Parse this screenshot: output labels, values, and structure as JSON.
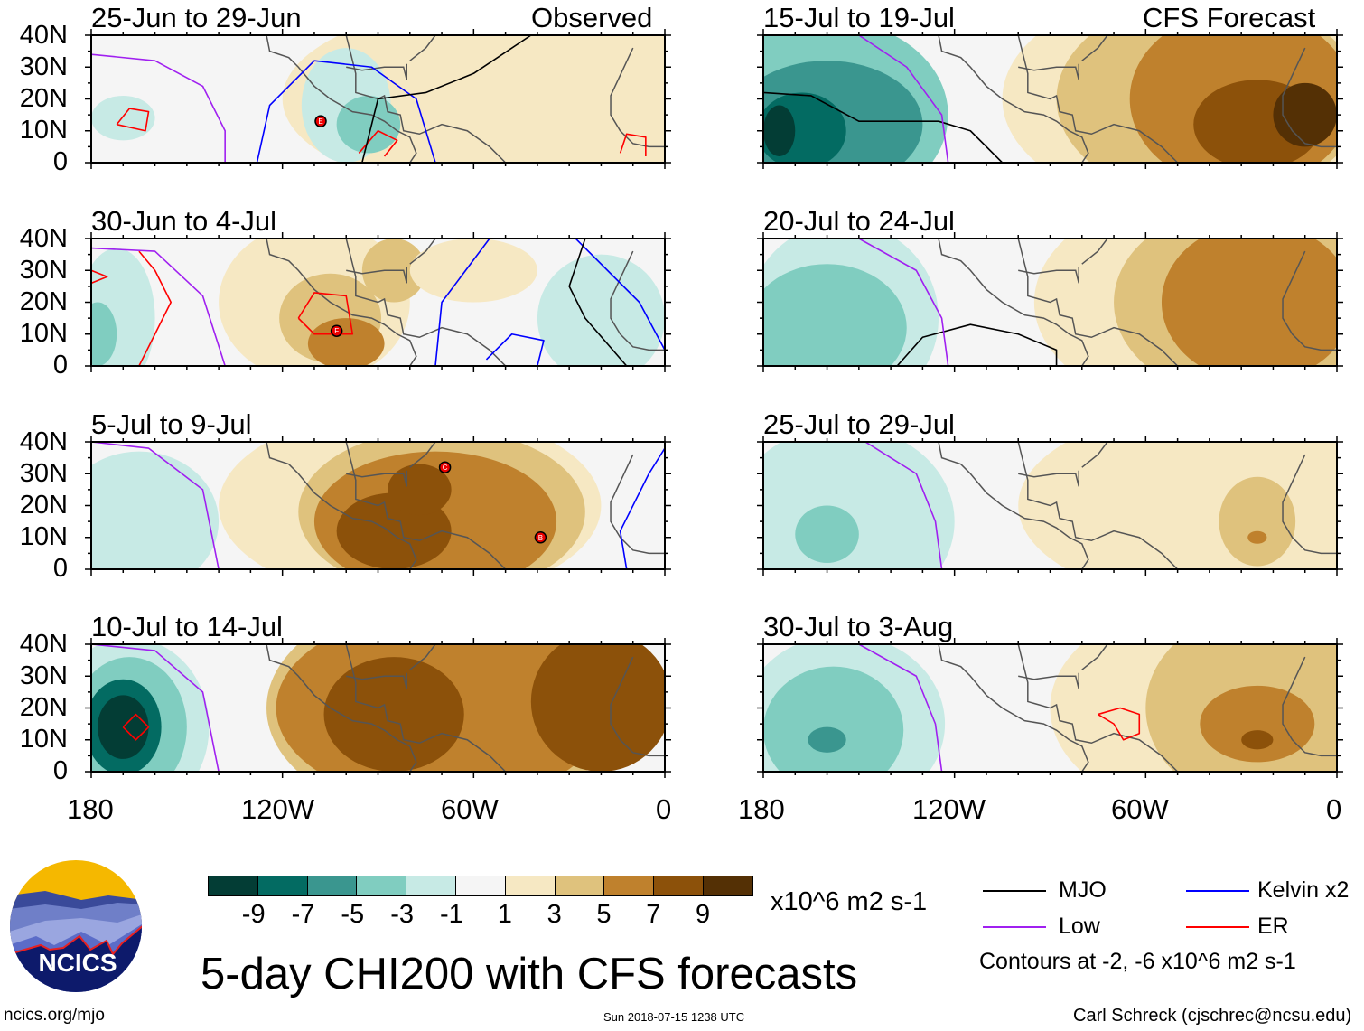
{
  "colors": [
    "#033d35",
    "#036b62",
    "#3a968f",
    "#80cdc0",
    "#c7eae5",
    "#f5f5f5",
    "#f6e8c3",
    "#dfc27d",
    "#bf812d",
    "#8c510a",
    "#543005"
  ],
  "header": {
    "observed": "Observed",
    "forecast": "CFS Forecast"
  },
  "lat_ticks": [
    "40N",
    "30N",
    "20N",
    "10N",
    "0"
  ],
  "lon_ticks": [
    "180",
    "120W",
    "60W",
    "0"
  ],
  "panels": [
    {
      "title": "25-Jun to 29-Jun",
      "bg": 5,
      "blobs": [
        [
          -50,
          20,
          70,
          30,
          6
        ],
        [
          -20,
          25,
          40,
          30,
          6
        ],
        [
          -100,
          18,
          14,
          18,
          4
        ],
        [
          -93,
          12,
          10,
          9,
          3
        ],
        [
          -170,
          14,
          10,
          7,
          4
        ]
      ],
      "contours": [
        {
          "type": "ER",
          "pts": [
            [
              -172,
              12
            ],
            [
              -168,
              17
            ],
            [
              -162,
              16
            ],
            [
              -163,
              10
            ],
            [
              -172,
              12
            ]
          ]
        },
        {
          "type": "ER",
          "pts": [
            [
              -96,
              3
            ],
            [
              -90,
              10
            ],
            [
              -84,
              7
            ],
            [
              -88,
              2
            ]
          ]
        },
        {
          "type": "ER",
          "pts": [
            [
              -14,
              3
            ],
            [
              -12,
              9
            ],
            [
              -6,
              8
            ],
            [
              -6,
              2
            ]
          ]
        },
        {
          "type": "Low",
          "pts": [
            [
              -180,
              34
            ],
            [
              -160,
              32
            ],
            [
              -145,
              24
            ],
            [
              -138,
              10
            ],
            [
              -138,
              0
            ]
          ]
        },
        {
          "type": "Kelvin",
          "pts": [
            [
              -128,
              0
            ],
            [
              -124,
              18
            ],
            [
              -110,
              32
            ],
            [
              -92,
              30
            ],
            [
              -78,
              20
            ],
            [
              -72,
              0
            ]
          ]
        },
        {
          "type": "MJO",
          "pts": [
            [
              -95,
              0
            ],
            [
              -90,
              20
            ],
            [
              -75,
              22
            ],
            [
              -60,
              28
            ],
            [
              -42,
              40
            ]
          ]
        }
      ],
      "storms": [
        {
          "id": "E",
          "lon": -108,
          "lat": 13
        }
      ]
    },
    {
      "title": "30-Jun to 4-Jul",
      "bg": 5,
      "blobs": [
        [
          -172,
          15,
          12,
          22,
          4
        ],
        [
          -178,
          10,
          6,
          10,
          3
        ],
        [
          -110,
          20,
          30,
          25,
          6
        ],
        [
          -105,
          15,
          16,
          14,
          7
        ],
        [
          -100,
          7,
          12,
          8,
          8
        ],
        [
          -85,
          30,
          10,
          10,
          7
        ],
        [
          -20,
          15,
          20,
          20,
          4
        ],
        [
          -60,
          30,
          20,
          10,
          6
        ]
      ],
      "contours": [
        {
          "type": "ER",
          "pts": [
            [
              -180,
              30
            ],
            [
              -175,
              28
            ],
            [
              -180,
              26
            ]
          ]
        },
        {
          "type": "ER",
          "pts": [
            [
              -165,
              36
            ],
            [
              -160,
              30
            ],
            [
              -155,
              20
            ],
            [
              -165,
              0
            ]
          ]
        },
        {
          "type": "ER",
          "pts": [
            [
              -115,
              15
            ],
            [
              -110,
              23
            ],
            [
              -100,
              22
            ],
            [
              -98,
              10
            ],
            [
              -110,
              10
            ],
            [
              -115,
              15
            ]
          ]
        },
        {
          "type": "Low",
          "pts": [
            [
              -180,
              37
            ],
            [
              -160,
              36
            ],
            [
              -145,
              22
            ],
            [
              -138,
              0
            ]
          ]
        },
        {
          "type": "Kelvin",
          "pts": [
            [
              -72,
              0
            ],
            [
              -70,
              20
            ],
            [
              -55,
              40
            ]
          ]
        },
        {
          "type": "Kelvin",
          "pts": [
            [
              -56,
              2
            ],
            [
              -48,
              10
            ],
            [
              -38,
              8
            ],
            [
              -40,
              0
            ]
          ]
        },
        {
          "type": "Kelvin",
          "pts": [
            [
              -28,
              40
            ],
            [
              -18,
              30
            ],
            [
              -8,
              20
            ],
            [
              0,
              5
            ]
          ]
        },
        {
          "type": "MJO",
          "pts": [
            [
              -25,
              40
            ],
            [
              -30,
              25
            ],
            [
              -25,
              15
            ],
            [
              -12,
              0
            ]
          ]
        }
      ],
      "storms": [
        {
          "id": "F",
          "lon": -103,
          "lat": 11
        }
      ]
    },
    {
      "title": "5-Jul to 9-Jul",
      "bg": 5,
      "blobs": [
        [
          -172,
          10,
          14,
          14,
          3
        ],
        [
          -165,
          15,
          25,
          22,
          4
        ],
        [
          -80,
          20,
          60,
          30,
          6
        ],
        [
          -70,
          18,
          45,
          26,
          7
        ],
        [
          -72,
          15,
          38,
          22,
          8
        ],
        [
          -85,
          12,
          18,
          12,
          9
        ],
        [
          -77,
          25,
          10,
          8,
          9
        ]
      ],
      "contours": [
        {
          "type": "Low",
          "pts": [
            [
              -180,
              40
            ],
            [
              -162,
              38
            ],
            [
              -145,
              25
            ],
            [
              -140,
              0
            ]
          ]
        },
        {
          "type": "Kelvin",
          "pts": [
            [
              -12,
              0
            ],
            [
              -14,
              12
            ],
            [
              -5,
              30
            ],
            [
              0,
              38
            ]
          ]
        }
      ],
      "storms": [
        {
          "id": "C",
          "lon": -69,
          "lat": 32
        },
        {
          "id": "B",
          "lon": -39,
          "lat": 10
        }
      ]
    },
    {
      "title": "10-Jul to 14-Jul",
      "bg": 5,
      "blobs": [
        [
          -168,
          14,
          25,
          28,
          4
        ],
        [
          -168,
          14,
          18,
          22,
          3
        ],
        [
          -170,
          14,
          12,
          15,
          1
        ],
        [
          -170,
          14,
          8,
          10,
          0
        ],
        [
          -70,
          20,
          55,
          35,
          7
        ],
        [
          -70,
          20,
          52,
          30,
          8
        ],
        [
          -85,
          18,
          22,
          18,
          9
        ],
        [
          -20,
          22,
          22,
          22,
          9
        ]
      ],
      "contours": [
        {
          "type": "ER",
          "pts": [
            [
              -170,
              14
            ],
            [
              -166,
              18
            ],
            [
              -162,
              14
            ],
            [
              -166,
              10
            ],
            [
              -170,
              14
            ]
          ]
        },
        {
          "type": "Low",
          "pts": [
            [
              -180,
              40
            ],
            [
              -160,
              38
            ],
            [
              -145,
              25
            ],
            [
              -140,
              0
            ]
          ]
        }
      ],
      "storms": []
    },
    {
      "title": "15-Jul to 19-Jul",
      "bg": 5,
      "blobs": [
        [
          -160,
          15,
          38,
          30,
          3
        ],
        [
          -160,
          12,
          30,
          20,
          2
        ],
        [
          -168,
          10,
          14,
          12,
          1
        ],
        [
          -175,
          10,
          5,
          8,
          0
        ],
        [
          -45,
          20,
          60,
          35,
          6
        ],
        [
          -40,
          20,
          48,
          32,
          7
        ],
        [
          -30,
          20,
          35,
          28,
          8
        ],
        [
          -25,
          12,
          20,
          14,
          9
        ],
        [
          -10,
          15,
          10,
          10,
          10
        ]
      ],
      "contours": [
        {
          "type": "MJO",
          "pts": [
            [
              -180,
              22
            ],
            [
              -165,
              21
            ],
            [
              -150,
              13
            ],
            [
              -125,
              13
            ],
            [
              -115,
              10
            ],
            [
              -105,
              0
            ]
          ]
        },
        {
          "type": "Low",
          "pts": [
            [
              -150,
              40
            ],
            [
              -135,
              30
            ],
            [
              -124,
              15
            ],
            [
              -122,
              0
            ]
          ]
        }
      ],
      "storms": []
    },
    {
      "title": "20-Jul to 24-Jul",
      "bg": 5,
      "blobs": [
        [
          -155,
          15,
          30,
          30,
          4
        ],
        [
          -160,
          12,
          25,
          20,
          3
        ],
        [
          -40,
          20,
          55,
          35,
          6
        ],
        [
          -30,
          20,
          40,
          30,
          7
        ],
        [
          -25,
          20,
          30,
          25,
          8
        ]
      ],
      "contours": [
        {
          "type": "MJO",
          "pts": [
            [
              -138,
              0
            ],
            [
              -130,
              9
            ],
            [
              -115,
              13
            ],
            [
              -100,
              10
            ],
            [
              -88,
              5
            ],
            [
              -88,
              0
            ]
          ]
        },
        {
          "type": "Low",
          "pts": [
            [
              -150,
              40
            ],
            [
              -132,
              30
            ],
            [
              -124,
              15
            ],
            [
              -122,
              0
            ]
          ]
        }
      ],
      "storms": []
    },
    {
      "title": "25-Jul to 29-Jul",
      "bg": 5,
      "blobs": [
        [
          -155,
          15,
          35,
          30,
          4
        ],
        [
          -160,
          11,
          10,
          9,
          3
        ],
        [
          -40,
          20,
          60,
          30,
          6
        ],
        [
          -25,
          15,
          12,
          14,
          7
        ],
        [
          -25,
          10,
          3,
          2,
          8
        ]
      ],
      "contours": [
        {
          "type": "Low",
          "pts": [
            [
              -148,
              40
            ],
            [
              -132,
              30
            ],
            [
              -126,
              15
            ],
            [
              -124,
              0
            ]
          ]
        }
      ],
      "storms": []
    },
    {
      "title": "30-Jul to 3-Aug",
      "bg": 5,
      "blobs": [
        [
          -155,
          15,
          32,
          28,
          4
        ],
        [
          -158,
          13,
          22,
          20,
          3
        ],
        [
          -160,
          10,
          6,
          4,
          2
        ],
        [
          -35,
          20,
          55,
          35,
          6
        ],
        [
          -25,
          20,
          35,
          30,
          7
        ],
        [
          -25,
          15,
          18,
          12,
          8
        ],
        [
          -25,
          10,
          5,
          3,
          9
        ]
      ],
      "contours": [
        {
          "type": "ER",
          "pts": [
            [
              -75,
              18
            ],
            [
              -68,
              20
            ],
            [
              -62,
              18
            ],
            [
              -62,
              12
            ],
            [
              -67,
              10
            ],
            [
              -70,
              15
            ],
            [
              -75,
              18
            ]
          ]
        },
        {
          "type": "Low",
          "pts": [
            [
              -150,
              40
            ],
            [
              -132,
              30
            ],
            [
              -126,
              15
            ],
            [
              -124,
              0
            ]
          ]
        }
      ],
      "storms": []
    }
  ],
  "coast": [
    [
      -125,
      40
    ],
    [
      -124,
      35
    ],
    [
      -118,
      33
    ],
    [
      -115,
      30
    ],
    [
      -110,
      24
    ],
    [
      -105,
      20
    ],
    [
      -98,
      16
    ],
    [
      -92,
      15
    ],
    [
      -88,
      13
    ],
    [
      -84,
      10
    ],
    [
      -80,
      8
    ],
    [
      -78,
      3
    ],
    [
      -80,
      0
    ]
  ],
  "coast2": [
    [
      -100,
      40
    ],
    [
      -97,
      28
    ],
    [
      -97,
      22
    ],
    [
      -90,
      20
    ],
    [
      -88,
      21
    ],
    [
      -87,
      16
    ],
    [
      -83,
      15
    ],
    [
      -82,
      10
    ],
    [
      -77,
      9
    ],
    [
      -70,
      12
    ],
    [
      -62,
      10
    ],
    [
      -55,
      5
    ],
    [
      -50,
      0
    ]
  ],
  "coast3": [
    [
      -81,
      31
    ],
    [
      -81,
      26
    ],
    [
      -82,
      30
    ],
    [
      -88,
      30
    ],
    [
      -95,
      29
    ],
    [
      -100,
      30
    ]
  ],
  "coast4": [
    [
      -80,
      32
    ],
    [
      -75,
      36
    ],
    [
      -72,
      40
    ]
  ],
  "africa": [
    [
      -10,
      36
    ],
    [
      -17,
      21
    ],
    [
      -17,
      15
    ],
    [
      -14,
      10
    ],
    [
      -10,
      6
    ],
    [
      -5,
      5
    ],
    [
      0,
      5
    ]
  ],
  "colorbar": {
    "labels": [
      "-9",
      "-7",
      "-5",
      "-3",
      "-1",
      "1",
      "3",
      "5",
      "7",
      "9"
    ],
    "units": "x10^6 m2 s-1"
  },
  "legend": {
    "mjo": "MJO",
    "low": "Low",
    "kelvin": "Kelvin x2",
    "er": "ER",
    "note": "Contours at -2, -6 x10^6 m2 s-1",
    "line_colors": {
      "MJO": "#000000",
      "Low": "#a020f0",
      "Kelvin": "#0000ff",
      "ER": "#ff0000"
    }
  },
  "footer": {
    "title": "5-day CHI200 with CFS forecasts",
    "url": "ncics.org/mjo",
    "timestamp": "Sun 2018-07-15 1238 UTC",
    "author": "Carl Schreck (cjschrec@ncsu.edu)",
    "logo_text": "NCICS"
  }
}
